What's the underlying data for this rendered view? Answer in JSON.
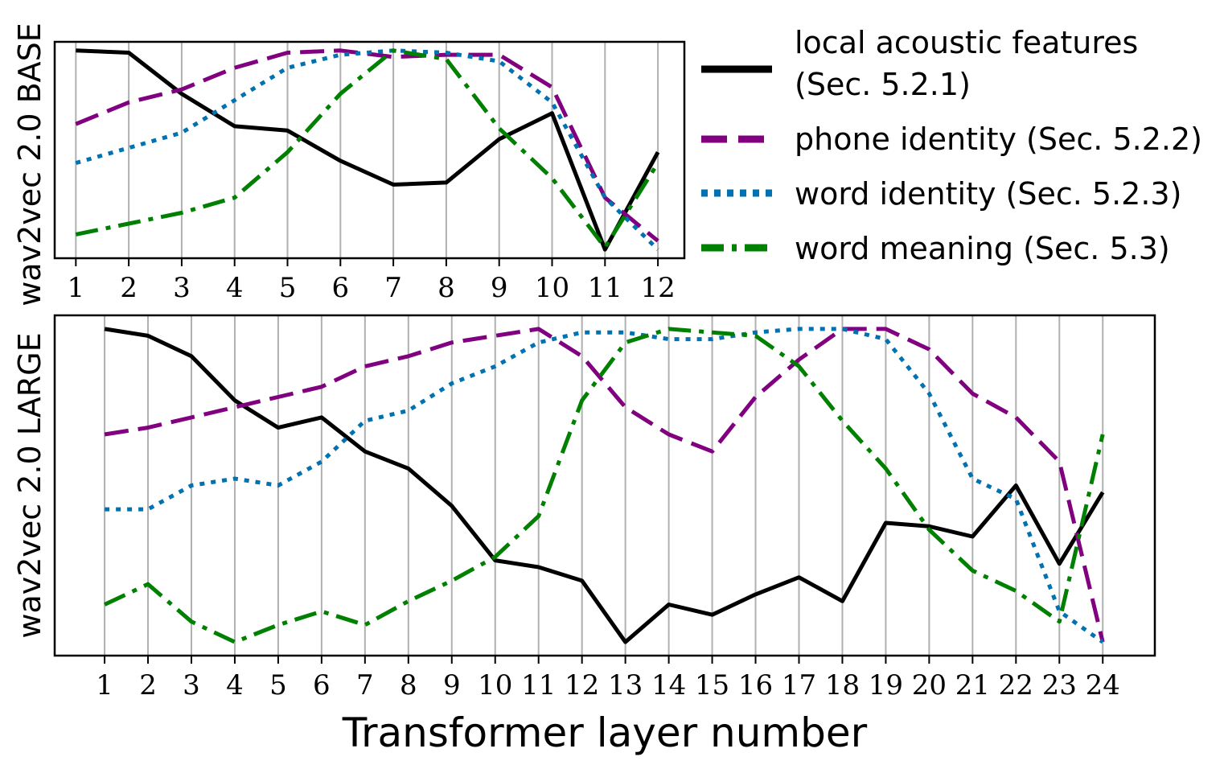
{
  "chart_data": [
    {
      "type": "line",
      "ylabel": "wav2vec 2.0 BASE",
      "xlabel": "",
      "x": [
        1,
        2,
        3,
        4,
        5,
        6,
        7,
        8,
        9,
        10,
        11,
        12
      ],
      "xlim": [
        0.6,
        12.5
      ],
      "ylim": [
        0,
        1
      ],
      "grid": "vertical",
      "series": [
        {
          "name": "local acoustic features (Sec. 5.2.1)",
          "color": "#000000",
          "dash": "solid",
          "values": [
            0.96,
            0.95,
            0.76,
            0.61,
            0.59,
            0.45,
            0.34,
            0.35,
            0.55,
            0.67,
            0.04,
            0.49
          ]
        },
        {
          "name": "phone identity (Sec. 5.2.2)",
          "color": "#800080",
          "dash": "dashed",
          "values": [
            0.62,
            0.72,
            0.78,
            0.88,
            0.95,
            0.96,
            0.93,
            0.94,
            0.94,
            0.79,
            0.28,
            0.08
          ]
        },
        {
          "name": "word identity (Sec. 5.2.3)",
          "color": "#0072b2",
          "dash": "dotted",
          "values": [
            0.44,
            0.51,
            0.58,
            0.73,
            0.88,
            0.94,
            0.96,
            0.95,
            0.91,
            0.72,
            0.28,
            0.04
          ]
        },
        {
          "name": "word meaning (Sec. 5.3)",
          "color": "#008000",
          "dash": "dashdot",
          "values": [
            0.11,
            0.16,
            0.21,
            0.28,
            0.49,
            0.76,
            0.96,
            0.92,
            0.6,
            0.37,
            0.05,
            0.44
          ]
        }
      ]
    },
    {
      "type": "line",
      "ylabel": "wav2vec 2.0 LARGE",
      "xlabel": "Transformer layer number",
      "x": [
        1,
        2,
        3,
        4,
        5,
        6,
        7,
        8,
        9,
        10,
        11,
        12,
        13,
        14,
        15,
        16,
        17,
        18,
        19,
        20,
        21,
        22,
        23,
        24
      ],
      "xlim": [
        -0.15,
        25.2
      ],
      "ylim": [
        0,
        1
      ],
      "grid": "vertical",
      "series": [
        {
          "name": "local acoustic features (Sec. 5.2.1)",
          "color": "#000000",
          "dash": "solid",
          "values": [
            0.96,
            0.94,
            0.88,
            0.75,
            0.67,
            0.7,
            0.6,
            0.55,
            0.44,
            0.28,
            0.26,
            0.22,
            0.04,
            0.15,
            0.12,
            0.18,
            0.23,
            0.16,
            0.39,
            0.38,
            0.35,
            0.5,
            0.27,
            0.48
          ]
        },
        {
          "name": "phone identity (Sec. 5.2.2)",
          "color": "#800080",
          "dash": "dashed",
          "values": [
            0.65,
            0.67,
            0.7,
            0.73,
            0.76,
            0.79,
            0.85,
            0.88,
            0.92,
            0.94,
            0.96,
            0.88,
            0.73,
            0.65,
            0.6,
            0.76,
            0.87,
            0.96,
            0.96,
            0.9,
            0.77,
            0.7,
            0.57,
            0.04
          ]
        },
        {
          "name": "word identity (Sec. 5.2.3)",
          "color": "#0072b2",
          "dash": "dotted",
          "values": [
            0.43,
            0.43,
            0.5,
            0.52,
            0.5,
            0.57,
            0.69,
            0.72,
            0.8,
            0.85,
            0.92,
            0.95,
            0.95,
            0.93,
            0.93,
            0.95,
            0.96,
            0.96,
            0.93,
            0.77,
            0.52,
            0.46,
            0.13,
            0.04
          ]
        },
        {
          "name": "word meaning (Sec. 5.3)",
          "color": "#008000",
          "dash": "dashdot",
          "values": [
            0.15,
            0.21,
            0.1,
            0.04,
            0.09,
            0.13,
            0.09,
            0.16,
            0.22,
            0.29,
            0.41,
            0.75,
            0.92,
            0.96,
            0.95,
            0.94,
            0.85,
            0.69,
            0.55,
            0.37,
            0.25,
            0.19,
            0.1,
            0.65
          ]
        }
      ]
    }
  ],
  "legend": {
    "placement": "right of top panel",
    "entries": [
      {
        "label_line1": "local acoustic features",
        "label_line2": "(Sec. 5.2.1)",
        "color": "#000000",
        "dash": "solid"
      },
      {
        "label_line1": "phone identity (Sec. 5.2.2)",
        "label_line2": "",
        "color": "#800080",
        "dash": "dashed"
      },
      {
        "label_line1": "word identity (Sec. 5.2.3)",
        "label_line2": "",
        "color": "#0072b2",
        "dash": "dotted"
      },
      {
        "label_line1": "word meaning (Sec. 5.3)",
        "label_line2": "",
        "color": "#008000",
        "dash": "dashdot"
      }
    ]
  }
}
